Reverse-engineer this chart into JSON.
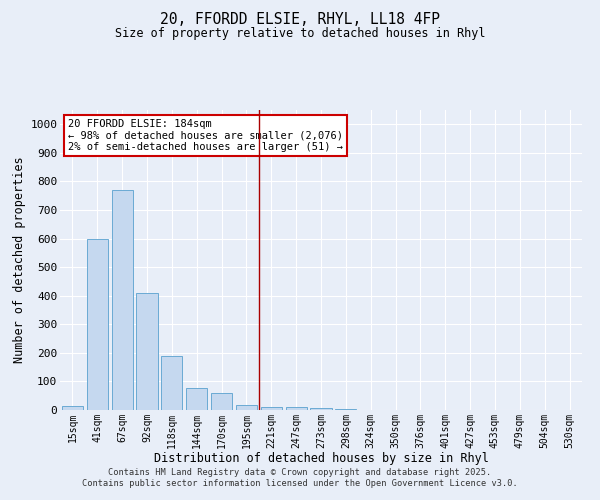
{
  "title_line1": "20, FFORDD ELSIE, RHYL, LL18 4FP",
  "title_line2": "Size of property relative to detached houses in Rhyl",
  "xlabel": "Distribution of detached houses by size in Rhyl",
  "ylabel": "Number of detached properties",
  "categories": [
    "15sqm",
    "41sqm",
    "67sqm",
    "92sqm",
    "118sqm",
    "144sqm",
    "170sqm",
    "195sqm",
    "221sqm",
    "247sqm",
    "273sqm",
    "298sqm",
    "324sqm",
    "350sqm",
    "376sqm",
    "401sqm",
    "427sqm",
    "453sqm",
    "479sqm",
    "504sqm",
    "530sqm"
  ],
  "values": [
    15,
    600,
    770,
    410,
    190,
    78,
    60,
    17,
    12,
    10,
    8,
    5,
    0,
    0,
    0,
    0,
    0,
    0,
    0,
    0,
    0
  ],
  "bar_color": "#c5d8ef",
  "bar_edge_color": "#6aaad4",
  "background_color": "#e8eef8",
  "grid_color": "#ffffff",
  "annotation_text": "20 FFORDD ELSIE: 184sqm\n← 98% of detached houses are smaller (2,076)\n2% of semi-detached houses are larger (51) →",
  "annotation_box_color": "#ffffff",
  "annotation_box_edge_color": "#cc0000",
  "vline_x_index": 7.5,
  "vline_color": "#aa0000",
  "ylim": [
    0,
    1050
  ],
  "yticks": [
    0,
    100,
    200,
    300,
    400,
    500,
    600,
    700,
    800,
    900,
    1000
  ],
  "footer_line1": "Contains HM Land Registry data © Crown copyright and database right 2025.",
  "footer_line2": "Contains public sector information licensed under the Open Government Licence v3.0."
}
